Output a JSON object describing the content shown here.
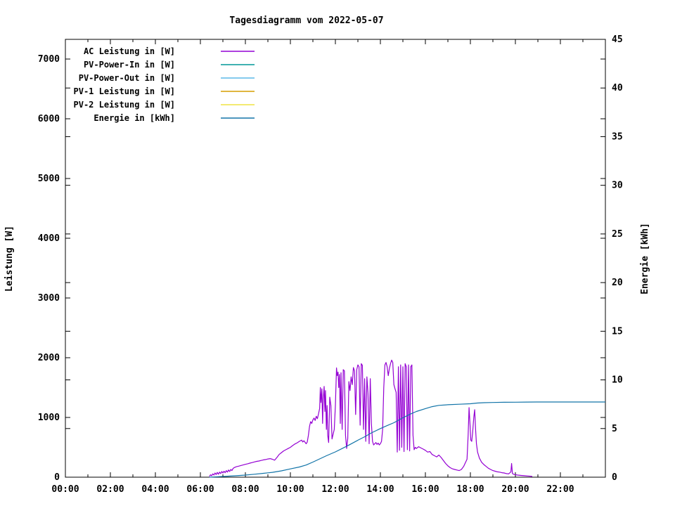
{
  "chart_data": {
    "type": "line",
    "title": "Tagesdiagramm vom 2022-05-07",
    "grid": false,
    "legend_position": "top-left-inside",
    "x_axis": {
      "label": "",
      "min_hour": 0,
      "max_hour": 24,
      "major_ticks": [
        {
          "hour": 0,
          "label": "00:00"
        },
        {
          "hour": 2,
          "label": "02:00"
        },
        {
          "hour": 4,
          "label": "04:00"
        },
        {
          "hour": 6,
          "label": "06:00"
        },
        {
          "hour": 8,
          "label": "08:00"
        },
        {
          "hour": 10,
          "label": "10:00"
        },
        {
          "hour": 12,
          "label": "12:00"
        },
        {
          "hour": 14,
          "label": "14:00"
        },
        {
          "hour": 16,
          "label": "16:00"
        },
        {
          "hour": 18,
          "label": "18:00"
        },
        {
          "hour": 20,
          "label": "20:00"
        },
        {
          "hour": 22,
          "label": "22:00"
        },
        {
          "hour": 24,
          "label": ""
        }
      ],
      "minor_tick_hours": [
        1,
        3,
        5,
        7,
        9,
        11,
        13,
        15,
        17,
        19,
        21,
        23
      ]
    },
    "y_axis": {
      "label": "Leistung [W]",
      "min": 0,
      "max": 7000,
      "ticks": [
        0,
        1000,
        2000,
        3000,
        4000,
        5000,
        6000,
        7000
      ]
    },
    "y2_axis": {
      "label": "Energie [kWh]",
      "min": 0,
      "max": 45,
      "ticks": [
        0,
        5,
        10,
        15,
        20,
        25,
        30,
        35,
        40,
        45
      ]
    },
    "legend": [
      {
        "id": "ac",
        "label": "AC Leistung in [W]",
        "color": "#9400D3",
        "axis": "y"
      },
      {
        "id": "pv_in",
        "label": "PV-Power-In in [W]",
        "color": "#009999",
        "axis": "y"
      },
      {
        "id": "pv_out",
        "label": "PV-Power-Out in [W]",
        "color": "#5CB8E8",
        "axis": "y"
      },
      {
        "id": "pv1",
        "label": "PV-1 Leistung in [W]",
        "color": "#D69D00",
        "axis": "y"
      },
      {
        "id": "pv2",
        "label": "PV-2 Leistung in [W]",
        "color": "#EFE342",
        "axis": "y"
      },
      {
        "id": "energie",
        "label": "Energie in [kWh]",
        "color": "#1274A8",
        "axis": "y2"
      }
    ],
    "series": {
      "ac": {
        "unit": "W",
        "points": [
          [
            6.4,
            15
          ],
          [
            6.45,
            40
          ],
          [
            6.5,
            25
          ],
          [
            6.55,
            55
          ],
          [
            6.6,
            35
          ],
          [
            6.65,
            70
          ],
          [
            6.7,
            45
          ],
          [
            6.75,
            80
          ],
          [
            6.8,
            50
          ],
          [
            6.85,
            85
          ],
          [
            6.9,
            60
          ],
          [
            6.95,
            95
          ],
          [
            7.0,
            70
          ],
          [
            7.05,
            100
          ],
          [
            7.1,
            75
          ],
          [
            7.15,
            110
          ],
          [
            7.2,
            85
          ],
          [
            7.25,
            120
          ],
          [
            7.3,
            95
          ],
          [
            7.35,
            130
          ],
          [
            7.4,
            110
          ],
          [
            7.45,
            145
          ],
          [
            7.5,
            160
          ],
          [
            7.6,
            175
          ],
          [
            7.7,
            185
          ],
          [
            7.8,
            195
          ],
          [
            7.9,
            205
          ],
          [
            8.0,
            215
          ],
          [
            8.1,
            225
          ],
          [
            8.2,
            235
          ],
          [
            8.3,
            245
          ],
          [
            8.4,
            255
          ],
          [
            8.5,
            265
          ],
          [
            8.6,
            270
          ],
          [
            8.7,
            280
          ],
          [
            8.8,
            290
          ],
          [
            8.9,
            295
          ],
          [
            9.0,
            305
          ],
          [
            9.1,
            310
          ],
          [
            9.2,
            300
          ],
          [
            9.3,
            285
          ],
          [
            9.4,
            330
          ],
          [
            9.5,
            380
          ],
          [
            9.6,
            410
          ],
          [
            9.7,
            440
          ],
          [
            9.8,
            460
          ],
          [
            9.9,
            480
          ],
          [
            10.0,
            500
          ],
          [
            10.1,
            530
          ],
          [
            10.2,
            555
          ],
          [
            10.3,
            575
          ],
          [
            10.4,
            600
          ],
          [
            10.5,
            620
          ],
          [
            10.55,
            590
          ],
          [
            10.6,
            610
          ],
          [
            10.7,
            560
          ],
          [
            10.75,
            590
          ],
          [
            10.8,
            700
          ],
          [
            10.85,
            850
          ],
          [
            10.9,
            930
          ],
          [
            10.95,
            900
          ],
          [
            11.0,
            960
          ],
          [
            11.05,
            990
          ],
          [
            11.1,
            950
          ],
          [
            11.15,
            1020
          ],
          [
            11.2,
            980
          ],
          [
            11.25,
            1060
          ],
          [
            11.3,
            1150
          ],
          [
            11.33,
            1500
          ],
          [
            11.36,
            1250
          ],
          [
            11.4,
            1480
          ],
          [
            11.43,
            900
          ],
          [
            11.46,
            1300
          ],
          [
            11.5,
            1520
          ],
          [
            11.53,
            1100
          ],
          [
            11.56,
            1450
          ],
          [
            11.6,
            800
          ],
          [
            11.63,
            1200
          ],
          [
            11.66,
            700
          ],
          [
            11.7,
            580
          ],
          [
            11.75,
            1340
          ],
          [
            11.8,
            1200
          ],
          [
            11.85,
            640
          ],
          [
            11.9,
            720
          ],
          [
            11.95,
            800
          ],
          [
            12.0,
            1200
          ],
          [
            12.05,
            1830
          ],
          [
            12.08,
            1700
          ],
          [
            12.12,
            1760
          ],
          [
            12.15,
            1500
          ],
          [
            12.18,
            1720
          ],
          [
            12.22,
            900
          ],
          [
            12.25,
            1750
          ],
          [
            12.3,
            800
          ],
          [
            12.35,
            1800
          ],
          [
            12.4,
            1780
          ],
          [
            12.45,
            700
          ],
          [
            12.5,
            480
          ],
          [
            12.55,
            650
          ],
          [
            12.6,
            1600
          ],
          [
            12.65,
            1450
          ],
          [
            12.7,
            1680
          ],
          [
            12.75,
            1550
          ],
          [
            12.8,
            1835
          ],
          [
            12.85,
            1780
          ],
          [
            12.9,
            1050
          ],
          [
            12.95,
            1800
          ],
          [
            13.0,
            1880
          ],
          [
            13.05,
            1850
          ],
          [
            13.1,
            870
          ],
          [
            13.15,
            1900
          ],
          [
            13.2,
            1870
          ],
          [
            13.25,
            800
          ],
          [
            13.3,
            1650
          ],
          [
            13.35,
            600
          ],
          [
            13.4,
            1680
          ],
          [
            13.45,
            1400
          ],
          [
            13.5,
            560
          ],
          [
            13.55,
            1650
          ],
          [
            13.6,
            900
          ],
          [
            13.65,
            600
          ],
          [
            13.7,
            540
          ],
          [
            13.75,
            560
          ],
          [
            13.8,
            580
          ],
          [
            13.85,
            550
          ],
          [
            13.9,
            570
          ],
          [
            13.95,
            540
          ],
          [
            14.0,
            560
          ],
          [
            14.05,
            600
          ],
          [
            14.1,
            800
          ],
          [
            14.15,
            1500
          ],
          [
            14.2,
            1880
          ],
          [
            14.25,
            1920
          ],
          [
            14.3,
            1850
          ],
          [
            14.35,
            1700
          ],
          [
            14.4,
            1820
          ],
          [
            14.45,
            1900
          ],
          [
            14.5,
            1960
          ],
          [
            14.55,
            1920
          ],
          [
            14.6,
            1550
          ],
          [
            14.65,
            1480
          ],
          [
            14.7,
            1420
          ],
          [
            14.75,
            420
          ],
          [
            14.8,
            1850
          ],
          [
            14.85,
            450
          ],
          [
            14.9,
            1880
          ],
          [
            14.95,
            500
          ],
          [
            15.0,
            1850
          ],
          [
            15.05,
            430
          ],
          [
            15.1,
            1900
          ],
          [
            15.15,
            1850
          ],
          [
            15.2,
            460
          ],
          [
            15.25,
            1880
          ],
          [
            15.3,
            440
          ],
          [
            15.35,
            1850
          ],
          [
            15.4,
            1880
          ],
          [
            15.45,
            700
          ],
          [
            15.5,
            460
          ],
          [
            15.55,
            500
          ],
          [
            15.6,
            480
          ],
          [
            15.7,
            510
          ],
          [
            15.8,
            490
          ],
          [
            15.9,
            470
          ],
          [
            16.0,
            450
          ],
          [
            16.1,
            420
          ],
          [
            16.2,
            430
          ],
          [
            16.3,
            380
          ],
          [
            16.4,
            360
          ],
          [
            16.5,
            340
          ],
          [
            16.6,
            370
          ],
          [
            16.7,
            330
          ],
          [
            16.8,
            280
          ],
          [
            16.9,
            230
          ],
          [
            17.0,
            190
          ],
          [
            17.1,
            160
          ],
          [
            17.2,
            140
          ],
          [
            17.3,
            130
          ],
          [
            17.4,
            120
          ],
          [
            17.5,
            110
          ],
          [
            17.6,
            130
          ],
          [
            17.7,
            180
          ],
          [
            17.8,
            260
          ],
          [
            17.85,
            300
          ],
          [
            17.9,
            700
          ],
          [
            17.94,
            1165
          ],
          [
            17.98,
            900
          ],
          [
            18.02,
            620
          ],
          [
            18.06,
            600
          ],
          [
            18.1,
            750
          ],
          [
            18.15,
            1000
          ],
          [
            18.19,
            1130
          ],
          [
            18.23,
            800
          ],
          [
            18.27,
            560
          ],
          [
            18.32,
            420
          ],
          [
            18.4,
            320
          ],
          [
            18.5,
            250
          ],
          [
            18.6,
            210
          ],
          [
            18.7,
            180
          ],
          [
            18.8,
            150
          ],
          [
            18.9,
            130
          ],
          [
            19.0,
            110
          ],
          [
            19.1,
            100
          ],
          [
            19.2,
            90
          ],
          [
            19.3,
            85
          ],
          [
            19.4,
            75
          ],
          [
            19.5,
            70
          ],
          [
            19.6,
            60
          ],
          [
            19.7,
            55
          ],
          [
            19.8,
            90
          ],
          [
            19.83,
            230
          ],
          [
            19.87,
            60
          ],
          [
            19.95,
            45
          ],
          [
            20.1,
            35
          ],
          [
            20.25,
            30
          ],
          [
            20.4,
            25
          ],
          [
            20.55,
            20
          ],
          [
            20.7,
            15
          ],
          [
            20.75,
            10
          ]
        ]
      },
      "pv_in": {
        "unit": "W",
        "points": []
      },
      "pv_out": {
        "unit": "W",
        "points": []
      },
      "pv1": {
        "unit": "W",
        "points": []
      },
      "pv2": {
        "unit": "W",
        "points": []
      },
      "energie": {
        "unit": "kWh",
        "points": [
          [
            6.4,
            0
          ],
          [
            6.8,
            0.05
          ],
          [
            7.2,
            0.1
          ],
          [
            7.6,
            0.15
          ],
          [
            8.0,
            0.22
          ],
          [
            8.4,
            0.3
          ],
          [
            8.8,
            0.4
          ],
          [
            9.2,
            0.5
          ],
          [
            9.6,
            0.65
          ],
          [
            10.0,
            0.85
          ],
          [
            10.4,
            1.05
          ],
          [
            10.7,
            1.25
          ],
          [
            11.0,
            1.55
          ],
          [
            11.3,
            1.88
          ],
          [
            11.6,
            2.2
          ],
          [
            12.0,
            2.6
          ],
          [
            12.3,
            2.95
          ],
          [
            12.6,
            3.3
          ],
          [
            13.0,
            3.8
          ],
          [
            13.3,
            4.15
          ],
          [
            13.6,
            4.55
          ],
          [
            14.0,
            5.0
          ],
          [
            14.3,
            5.3
          ],
          [
            14.6,
            5.6
          ],
          [
            15.0,
            6.1
          ],
          [
            15.3,
            6.45
          ],
          [
            15.6,
            6.75
          ],
          [
            16.0,
            7.05
          ],
          [
            16.3,
            7.25
          ],
          [
            16.6,
            7.38
          ],
          [
            17.0,
            7.45
          ],
          [
            17.5,
            7.5
          ],
          [
            18.0,
            7.55
          ],
          [
            18.3,
            7.62
          ],
          [
            18.6,
            7.66
          ],
          [
            19.0,
            7.68
          ],
          [
            19.5,
            7.7
          ],
          [
            20.0,
            7.71
          ],
          [
            20.5,
            7.72
          ],
          [
            21.0,
            7.73
          ],
          [
            24.0,
            7.73
          ]
        ]
      }
    }
  }
}
